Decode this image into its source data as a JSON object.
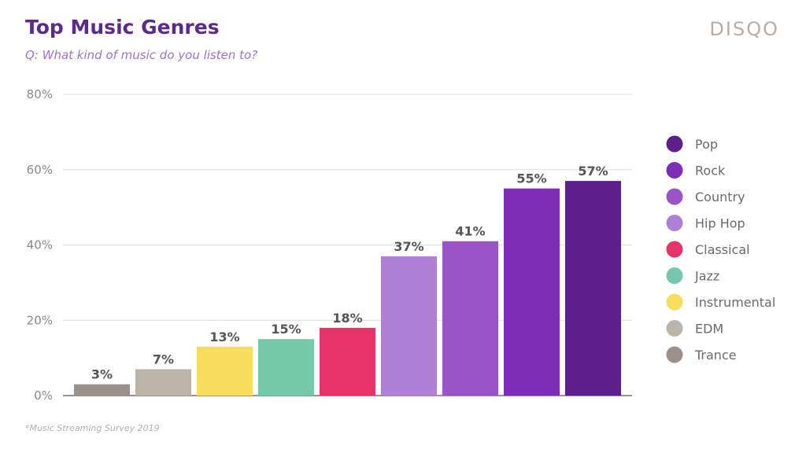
{
  "header": {
    "title": "Top Music Genres",
    "subtitle": "Q: What kind of music do you listen to?",
    "brand": "DISQO"
  },
  "footnote": "*Music Streaming Survey 2019",
  "chart_data": {
    "type": "bar",
    "title": "Top Music Genres",
    "subtitle": "Q: What kind of music do you listen to?",
    "xlabel": "",
    "ylabel": "",
    "ylim": [
      0,
      80
    ],
    "yticks": [
      0,
      20,
      40,
      60,
      80
    ],
    "ytick_labels": [
      "0%",
      "20%",
      "40%",
      "60%",
      "80%"
    ],
    "grid": true,
    "legend_position": "right",
    "categories": [
      "Trance",
      "EDM",
      "Instrumental",
      "Jazz",
      "Classical",
      "Hip Hop",
      "Country",
      "Rock",
      "Pop"
    ],
    "values": [
      3,
      7,
      13,
      15,
      18,
      37,
      41,
      55,
      57
    ],
    "data_labels": [
      "3%",
      "7%",
      "13%",
      "15%",
      "18%",
      "37%",
      "41%",
      "55%",
      "57%"
    ],
    "colors": [
      "#9a918a",
      "#bcb3ab",
      "#f8dc5c",
      "#76c8aa",
      "#e8336a",
      "#b07fd6",
      "#9a54c6",
      "#7e2cb8",
      "#5c1f8c"
    ],
    "legend": [
      {
        "label": "Pop",
        "color": "#5c1f8c"
      },
      {
        "label": "Rock",
        "color": "#7e2cb8"
      },
      {
        "label": "Country",
        "color": "#9a54c6"
      },
      {
        "label": "Hip Hop",
        "color": "#b07fd6"
      },
      {
        "label": "Classical",
        "color": "#e8336a"
      },
      {
        "label": "Jazz",
        "color": "#76c8aa"
      },
      {
        "label": "Instrumental",
        "color": "#f8dc5c"
      },
      {
        "label": "EDM",
        "color": "#bcb3ab"
      },
      {
        "label": "Trance",
        "color": "#9a918a"
      }
    ]
  }
}
